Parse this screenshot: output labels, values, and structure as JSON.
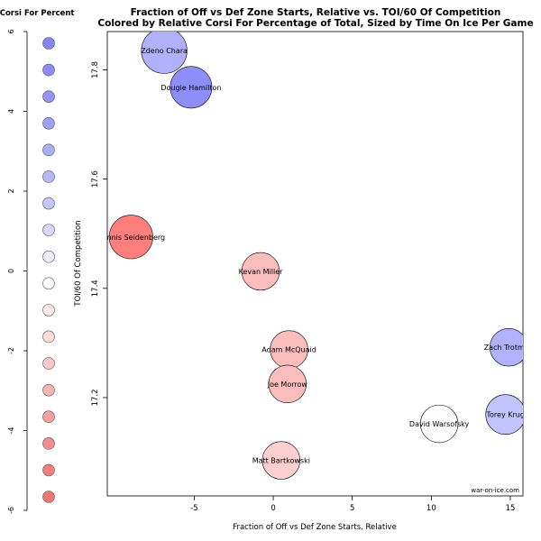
{
  "chart_data": {
    "type": "scatter",
    "title_line1": "Fraction of Off vs Def Zone Starts, Relative vs. TOI/60 Of Competition",
    "title_line2": "Colored by Relative Corsi For Percentage of Total, Sized by Time On Ice Per Game",
    "xlabel": "Fraction of Off vs Def Zone Starts, Relative",
    "ylabel": "TOI/60 Of Competition",
    "xlim": [
      -10.5,
      15.8
    ],
    "ylim": [
      17.02,
      17.87
    ],
    "xticks": [
      -5,
      0,
      5,
      10,
      15
    ],
    "yticks": [
      17.2,
      17.4,
      17.6,
      17.8
    ],
    "grid": false,
    "watermark": "war-on-ice.com",
    "points": [
      {
        "label": "Zdeno Chara",
        "x": -6.9,
        "y": 17.835,
        "size": 1.15,
        "color": "#b0b0fb"
      },
      {
        "label": "Dougie Hamilton",
        "x": -5.2,
        "y": 17.768,
        "size": 1.05,
        "color": "#8e8ef8"
      },
      {
        "label": "Dennis Seidenberg",
        "x": -9.0,
        "y": 17.494,
        "size": 1.1,
        "color": "#ff7f7f"
      },
      {
        "label": "Kevan Miller",
        "x": -0.8,
        "y": 17.431,
        "size": 0.95,
        "color": "#fbbcbc"
      },
      {
        "label": "Adam McQuaid",
        "x": 1.0,
        "y": 17.288,
        "size": 0.95,
        "color": "#fbbcbc"
      },
      {
        "label": "Joe Morrow",
        "x": 0.9,
        "y": 17.225,
        "size": 0.95,
        "color": "#fbbcbc"
      },
      {
        "label": "Matt Bartkowski",
        "x": 0.5,
        "y": 17.085,
        "size": 0.95,
        "color": "#fdd0d0"
      },
      {
        "label": "David Warsofsky",
        "x": 10.5,
        "y": 17.152,
        "size": 0.95,
        "color": "#fcfcff"
      },
      {
        "label": "Zach Trotman",
        "x": 14.9,
        "y": 17.292,
        "size": 0.95,
        "color": "#b2b2fc"
      },
      {
        "label": "Torey Krug",
        "x": 14.7,
        "y": 17.169,
        "size": 1.0,
        "color": "#c3c3fd"
      }
    ],
    "legend": {
      "title": "Relative Corsi For Percent",
      "ylim": [
        -6,
        6
      ],
      "ticks": [
        6,
        4,
        2,
        0,
        -2,
        -4,
        -6
      ],
      "values": [
        5.8,
        5.0,
        4.2,
        3.4,
        2.6,
        1.8,
        1.0,
        0.2,
        -0.6,
        -1.4,
        -2.2,
        -3.0,
        -3.8,
        -4.6,
        -5.4
      ],
      "colors": [
        "#8484f3",
        "#8c8cf4",
        "#9494f5",
        "#a0a0f6",
        "#acacf7",
        "#b8b8f8",
        "#c6c6fa",
        "#d8d8fb",
        "#ececfd",
        "#fdfdff",
        "#fdeaea",
        "#fbdada",
        "#f9c8c8",
        "#f6b4b4",
        "#f4a0a0",
        "#f28e8e",
        "#f08080",
        "#ee7676"
      ]
    }
  }
}
